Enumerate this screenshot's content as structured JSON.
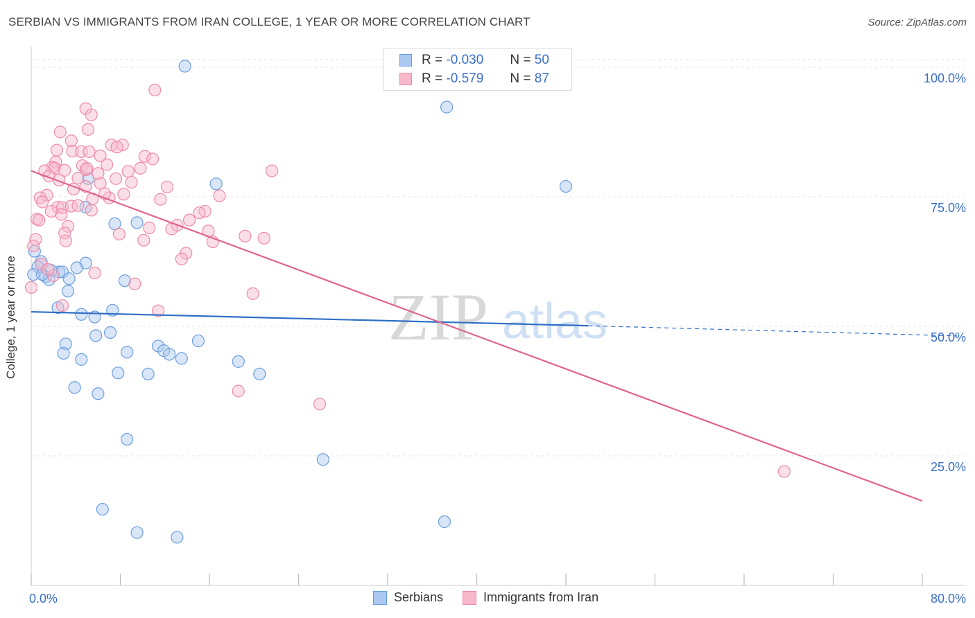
{
  "title": "SERBIAN VS IMMIGRANTS FROM IRAN COLLEGE, 1 YEAR OR MORE CORRELATION CHART",
  "source": "Source: ZipAtlas.com",
  "watermark": {
    "zip": "ZIP",
    "atlas": "atlas"
  },
  "legend_stats": {
    "serbians": {
      "r_label": "R =",
      "r_value": "-0.030",
      "n_label": "N =",
      "n_value": "50"
    },
    "iran": {
      "r_label": "R =",
      "r_value": "-0.579",
      "n_label": "N =",
      "n_value": "87"
    }
  },
  "colors": {
    "serbians_fill": "#aac8f0",
    "serbians_stroke": "#6b9ee0",
    "serbians_line": "#2f6fc6",
    "iran_fill": "#f7b8cb",
    "iran_stroke": "#ee8aa8",
    "iran_line": "#e0648f",
    "axis_text": "#3a6fc9",
    "grid": "#e5e5e5"
  },
  "chart_data": {
    "type": "scatter",
    "title": "SERBIAN VS IMMIGRANTS FROM IRAN COLLEGE, 1 YEAR OR MORE CORRELATION CHART",
    "xlabel": "",
    "ylabel": "College, 1 year or more",
    "xlim": [
      0,
      80
    ],
    "ylim": [
      0,
      102
    ],
    "x_tick_labels": [
      "0.0%",
      "80.0%"
    ],
    "y_ticks": [
      25,
      50,
      75,
      100
    ],
    "y_tick_labels": [
      "25.0%",
      "50.0%",
      "75.0%",
      "100.0%"
    ],
    "grid": true,
    "legend_position": "bottom",
    "series": [
      {
        "name": "Serbians",
        "points": [
          [
            13.8,
            100.2
          ],
          [
            37.3,
            92.3
          ],
          [
            48.0,
            77.0
          ],
          [
            16.6,
            77.5
          ],
          [
            5.1,
            78.5
          ],
          [
            4.9,
            73.0
          ],
          [
            7.5,
            69.8
          ],
          [
            9.5,
            70.0
          ],
          [
            0.3,
            64.5
          ],
          [
            0.9,
            62.5
          ],
          [
            0.6,
            61.5
          ],
          [
            2.5,
            60.5
          ],
          [
            2.8,
            60.5
          ],
          [
            4.9,
            62.2
          ],
          [
            4.1,
            61.3
          ],
          [
            1.3,
            59.6
          ],
          [
            1.6,
            59.0
          ],
          [
            3.4,
            59.2
          ],
          [
            8.4,
            58.8
          ],
          [
            3.3,
            56.8
          ],
          [
            2.4,
            53.6
          ],
          [
            4.5,
            52.3
          ],
          [
            5.7,
            51.8
          ],
          [
            7.3,
            53.1
          ],
          [
            5.8,
            48.2
          ],
          [
            7.1,
            48.8
          ],
          [
            3.1,
            46.6
          ],
          [
            2.9,
            44.8
          ],
          [
            4.5,
            43.6
          ],
          [
            8.6,
            45.0
          ],
          [
            11.4,
            46.2
          ],
          [
            11.9,
            45.3
          ],
          [
            12.4,
            44.6
          ],
          [
            13.5,
            43.8
          ],
          [
            15.0,
            47.2
          ],
          [
            18.6,
            43.2
          ],
          [
            7.8,
            41.0
          ],
          [
            10.5,
            40.8
          ],
          [
            20.5,
            40.8
          ],
          [
            3.9,
            38.2
          ],
          [
            6.0,
            37.0
          ],
          [
            8.6,
            28.2
          ],
          [
            26.2,
            24.3
          ],
          [
            6.4,
            14.7
          ],
          [
            9.5,
            10.2
          ],
          [
            13.1,
            9.3
          ],
          [
            37.1,
            12.3
          ],
          [
            0.2,
            60.0
          ],
          [
            1.0,
            60.0
          ],
          [
            1.8,
            60.8
          ]
        ]
      },
      {
        "name": "Immigrants from Iran",
        "points": [
          [
            11.1,
            95.6
          ],
          [
            4.9,
            92.0
          ],
          [
            5.4,
            90.8
          ],
          [
            5.1,
            88.0
          ],
          [
            2.6,
            87.5
          ],
          [
            3.6,
            85.8
          ],
          [
            7.2,
            85.0
          ],
          [
            8.2,
            85.0
          ],
          [
            7.7,
            84.6
          ],
          [
            2.3,
            84.0
          ],
          [
            3.7,
            83.8
          ],
          [
            4.5,
            83.7
          ],
          [
            5.2,
            83.7
          ],
          [
            6.2,
            82.9
          ],
          [
            10.2,
            82.8
          ],
          [
            10.9,
            82.3
          ],
          [
            2.2,
            81.7
          ],
          [
            4.6,
            81.0
          ],
          [
            1.9,
            80.7
          ],
          [
            2.1,
            80.5
          ],
          [
            1.2,
            80.0
          ],
          [
            3.0,
            80.1
          ],
          [
            4.9,
            80.2
          ],
          [
            5.0,
            80.5
          ],
          [
            9.8,
            80.5
          ],
          [
            1.6,
            79.0
          ],
          [
            21.6,
            80.0
          ],
          [
            7.6,
            78.5
          ],
          [
            6.2,
            77.6
          ],
          [
            4.9,
            77.0
          ],
          [
            12.2,
            76.9
          ],
          [
            8.3,
            75.5
          ],
          [
            1.4,
            75.3
          ],
          [
            0.8,
            74.8
          ],
          [
            16.9,
            75.2
          ],
          [
            7.0,
            74.8
          ],
          [
            5.5,
            74.6
          ],
          [
            1.0,
            74.0
          ],
          [
            11.6,
            74.5
          ],
          [
            2.4,
            73.0
          ],
          [
            2.8,
            72.9
          ],
          [
            3.6,
            73.2
          ],
          [
            4.2,
            73.3
          ],
          [
            5.4,
            72.4
          ],
          [
            15.6,
            72.2
          ],
          [
            2.7,
            71.6
          ],
          [
            15.1,
            71.9
          ],
          [
            0.5,
            70.7
          ],
          [
            0.7,
            70.5
          ],
          [
            13.1,
            69.5
          ],
          [
            10.6,
            69.0
          ],
          [
            3.3,
            69.3
          ],
          [
            12.6,
            68.8
          ],
          [
            15.9,
            68.4
          ],
          [
            7.9,
            67.8
          ],
          [
            3.0,
            68.0
          ],
          [
            19.2,
            67.4
          ],
          [
            20.9,
            67.0
          ],
          [
            10.1,
            66.6
          ],
          [
            16.3,
            66.3
          ],
          [
            3.1,
            66.5
          ],
          [
            0.4,
            66.8
          ],
          [
            0.2,
            65.5
          ],
          [
            13.9,
            64.1
          ],
          [
            13.5,
            63.0
          ],
          [
            5.7,
            60.3
          ],
          [
            9.3,
            58.2
          ],
          [
            0.0,
            57.5
          ],
          [
            19.9,
            56.3
          ],
          [
            2.8,
            54.0
          ],
          [
            11.4,
            53.0
          ],
          [
            18.6,
            37.5
          ],
          [
            25.9,
            35.0
          ],
          [
            67.6,
            22.0
          ],
          [
            0.9,
            62.0
          ],
          [
            2.0,
            59.8
          ],
          [
            1.5,
            61.0
          ],
          [
            6.0,
            79.5
          ],
          [
            3.8,
            76.5
          ],
          [
            9.0,
            77.8
          ],
          [
            4.2,
            78.6
          ],
          [
            6.8,
            81.2
          ],
          [
            8.7,
            79.9
          ],
          [
            2.5,
            78.2
          ],
          [
            14.2,
            70.5
          ],
          [
            1.8,
            72.2
          ],
          [
            6.6,
            75.6
          ]
        ]
      }
    ],
    "trendlines": [
      {
        "series": "Serbians",
        "solid_x": [
          0,
          50
        ],
        "dashed_x": [
          50,
          80
        ],
        "y_at_x0": 52.8,
        "y_at_x80": 48.5
      },
      {
        "series": "Immigrants from Iran",
        "x": [
          0,
          80
        ],
        "y_at_x0": 80.0,
        "y_at_x80": 16.3
      }
    ]
  }
}
